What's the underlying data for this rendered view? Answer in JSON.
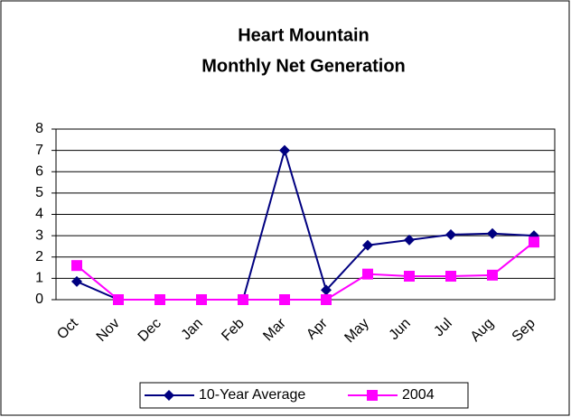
{
  "chart_data": {
    "type": "line",
    "title": [
      "Heart Mountain",
      "Monthly Net Generation"
    ],
    "categories": [
      "Oct",
      "Nov",
      "Dec",
      "Jan",
      "Feb",
      "Mar",
      "Apr",
      "May",
      "Jun",
      "Jul",
      "Aug",
      "Sep"
    ],
    "series": [
      {
        "name": "10-Year Average",
        "color": "#000080",
        "marker": "diamond",
        "values": [
          0.85,
          0,
          0,
          0,
          0,
          7,
          0.45,
          2.55,
          2.8,
          3.05,
          3.1,
          3.0
        ]
      },
      {
        "name": "2004",
        "color": "#ff00ff",
        "marker": "square",
        "values": [
          1.6,
          0,
          0,
          0,
          0,
          0,
          0,
          1.2,
          1.1,
          1.1,
          1.15,
          2.7
        ]
      }
    ],
    "ylim": [
      0,
      8
    ],
    "yticks": [
      0,
      1,
      2,
      3,
      4,
      5,
      6,
      7,
      8
    ],
    "grid": true,
    "legend": "bottom"
  }
}
